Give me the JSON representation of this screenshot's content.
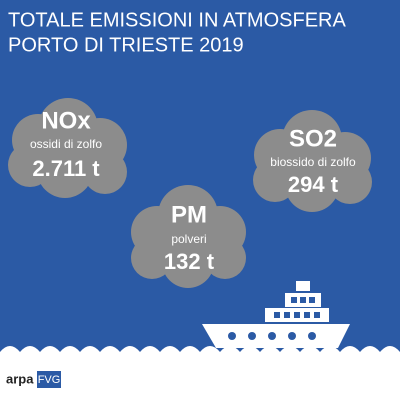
{
  "header": {
    "title": [
      "TOTALE EMISSIONI IN ATMOSFERA",
      "PORTO DI TRIESTE 2019"
    ]
  },
  "clouds": [
    {
      "name": "NOx",
      "description": "ossidi di zolfo",
      "amount": "2.711 t"
    },
    {
      "name": "SO2",
      "description": "biossido di zolfo",
      "amount": "294 t"
    },
    {
      "name": "PM",
      "description": "polveri",
      "amount": "132 t"
    }
  ],
  "logo": {
    "text": "arpa",
    "badge": "FVG"
  }
}
